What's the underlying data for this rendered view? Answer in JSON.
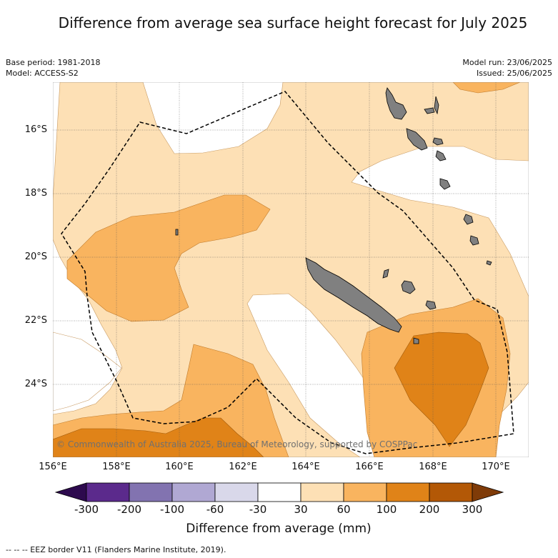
{
  "title": "Difference from average sea surface height forecast for July 2025",
  "base_period": "Base period: 1981-2018",
  "model": "Model: ACCESS-S2",
  "model_run": "Model run: 23/06/2025",
  "issued": "Issued: 25/06/2025",
  "credit": "© Commonwealth of Australia 2025, Bureau of Meteorology, supported by COSPPac",
  "lon_ticks": [
    "156°E",
    "158°E",
    "160°E",
    "162°E",
    "164°E",
    "166°E",
    "168°E",
    "170°E"
  ],
  "lat_ticks": [
    "16°S",
    "18°S",
    "20°S",
    "22°S",
    "24°S"
  ],
  "colorbar": {
    "levels": [
      "-300",
      "-200",
      "-100",
      "-60",
      "-30",
      "30",
      "60",
      "100",
      "200",
      "300"
    ],
    "colors": [
      "#2d0a4e",
      "#5b2a8c",
      "#8273b0",
      "#b0a8d3",
      "#d9d8ea",
      "#ffffff",
      "#fde0b5",
      "#f9b45f",
      "#e08318",
      "#b35806",
      "#7f3b08"
    ],
    "title": "Difference from average (mm)"
  },
  "land_color": "#808080",
  "eez_color": "#000000",
  "footer": "--  --  -- EEZ border V11 (Flanders Marine Institute, 2019)."
}
